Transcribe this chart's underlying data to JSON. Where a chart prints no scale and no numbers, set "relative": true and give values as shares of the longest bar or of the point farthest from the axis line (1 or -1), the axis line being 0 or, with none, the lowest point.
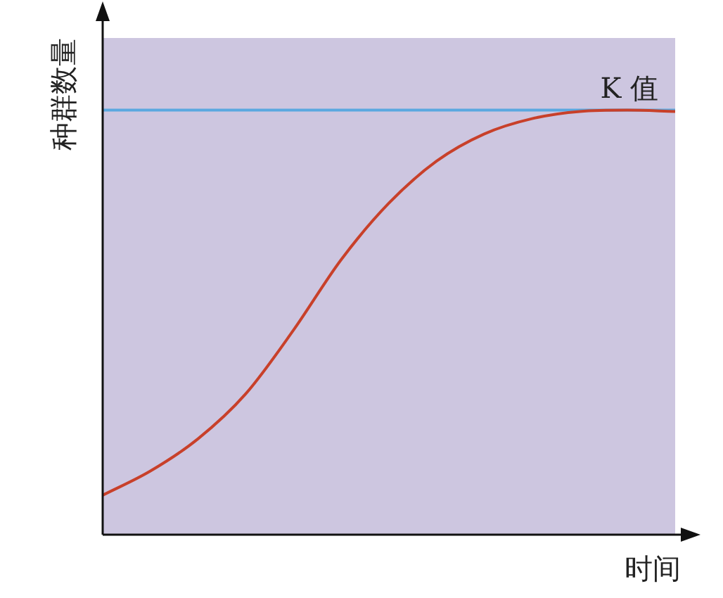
{
  "chart_data": {
    "type": "line",
    "relative": true,
    "xlabel": "时间",
    "ylabel": "种群数量",
    "categories": [
      null,
      null,
      null,
      null,
      null,
      null,
      null,
      null,
      null,
      null,
      null,
      null,
      null
    ],
    "series": [
      {
        "color": "#c8402a",
        "values": [
          0.093,
          0.15,
          0.226,
          0.332,
          0.482,
          0.648,
          0.781,
          0.88,
          0.944,
          0.98,
          0.997,
          1,
          0.997
        ]
      }
    ],
    "ref_lines": [
      {
        "axis": "y",
        "value": 1,
        "label": "K 值",
        "color": "#5aa8e0"
      }
    ],
    "legend": false,
    "marker": "none",
    "line_style": "solid"
  }
}
